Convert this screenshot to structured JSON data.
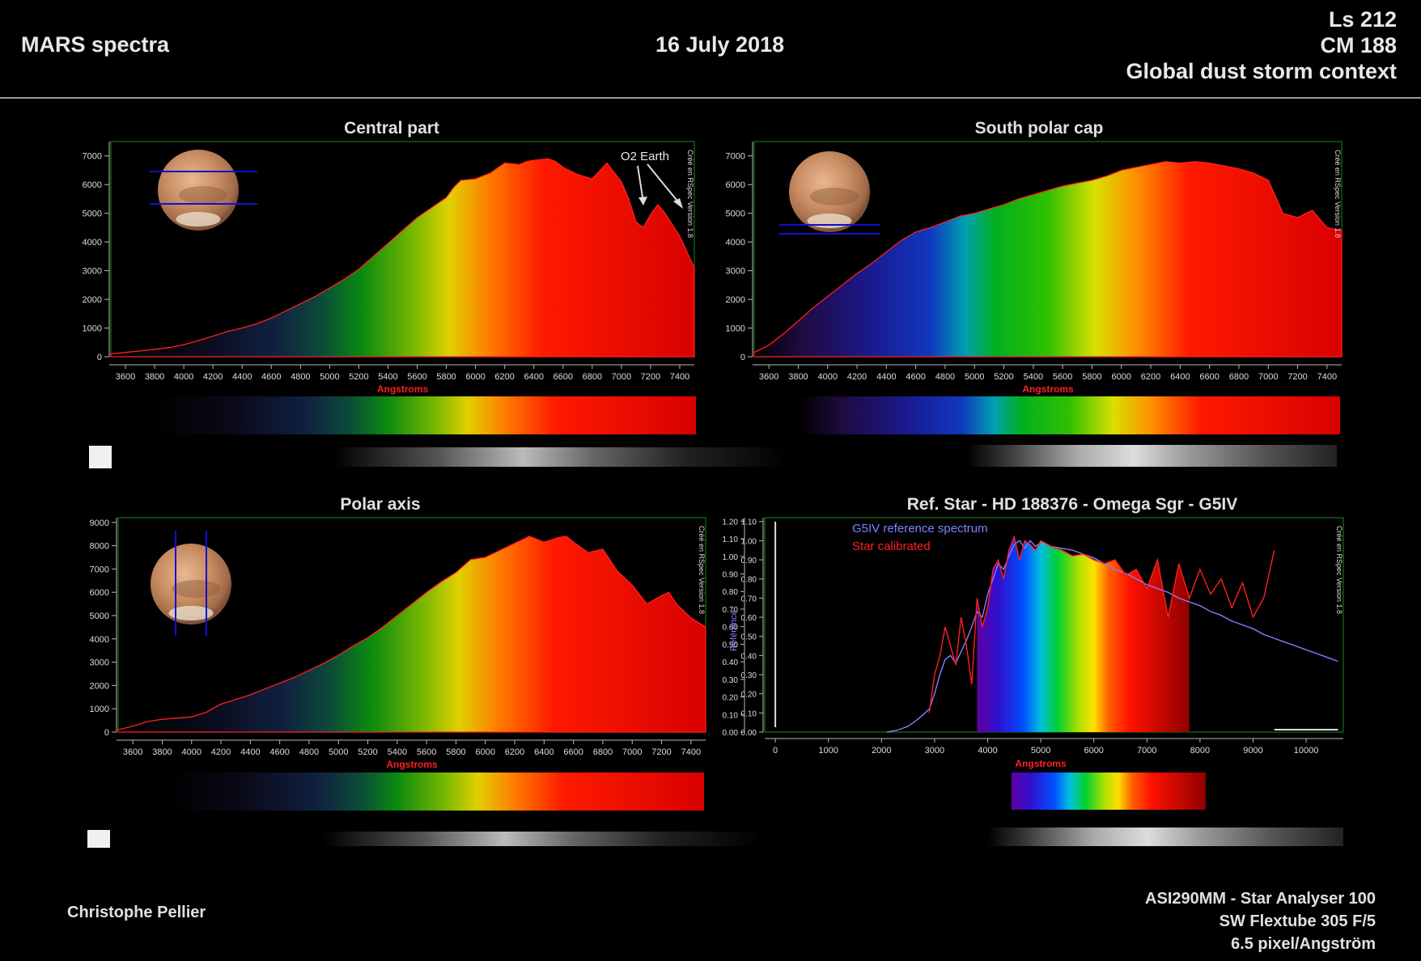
{
  "header": {
    "title": "MARS spectra",
    "date": "16 July 2018",
    "ls": "Ls 212",
    "cm": "CM 188",
    "context": "Global dust storm context"
  },
  "footer": {
    "author": "Christophe Pellier",
    "equipment": [
      "ASI290MM - Star Analyser 100",
      "SW Flextube 305 F/5",
      "6.5 pixel/Angström"
    ]
  },
  "chart_data": [
    {
      "type": "area",
      "title": "Central part",
      "xlabel": "Angstroms",
      "ylabel": "",
      "xlim": [
        3500,
        7500
      ],
      "ylim": [
        0,
        7500
      ],
      "xticks": [
        3600,
        3800,
        4000,
        4200,
        4400,
        4600,
        4800,
        5000,
        5200,
        5400,
        5600,
        5800,
        6000,
        6200,
        6400,
        6600,
        6800,
        7000,
        7200,
        7400
      ],
      "yticks": [
        0,
        1000,
        2000,
        3000,
        4000,
        5000,
        6000,
        7000
      ],
      "annotation": "O2 Earth",
      "watermark": "Créé en RSpec Version 1.8",
      "x": [
        3500,
        3600,
        3700,
        3800,
        3900,
        4000,
        4100,
        4200,
        4300,
        4400,
        4500,
        4600,
        4700,
        4800,
        4900,
        5000,
        5100,
        5200,
        5300,
        5400,
        5500,
        5600,
        5700,
        5800,
        5850,
        5900,
        6000,
        6100,
        6200,
        6300,
        6350,
        6400,
        6500,
        6550,
        6600,
        6700,
        6800,
        6900,
        7000,
        7050,
        7100,
        7150,
        7200,
        7250,
        7300,
        7400,
        7500
      ],
      "values": [
        100,
        150,
        200,
        260,
        320,
        420,
        560,
        720,
        880,
        1000,
        1150,
        1350,
        1600,
        1850,
        2100,
        2400,
        2700,
        3050,
        3500,
        3950,
        4400,
        4850,
        5200,
        5550,
        5900,
        6150,
        6200,
        6400,
        6750,
        6700,
        6800,
        6850,
        6900,
        6800,
        6600,
        6350,
        6200,
        6750,
        6100,
        5500,
        4700,
        4500,
        4950,
        5300,
        5000,
        4200,
        3100
      ]
    },
    {
      "type": "area",
      "title": "South polar cap",
      "xlabel": "Angstroms",
      "ylabel": "",
      "xlim": [
        3500,
        7500
      ],
      "ylim": [
        0,
        7500
      ],
      "xticks": [
        3600,
        3800,
        4000,
        4200,
        4400,
        4600,
        4800,
        5000,
        5200,
        5400,
        5600,
        5800,
        6000,
        6200,
        6400,
        6600,
        6800,
        7000,
        7200,
        7400
      ],
      "yticks": [
        0,
        1000,
        2000,
        3000,
        4000,
        5000,
        6000,
        7000
      ],
      "watermark": "Créé en RSpec Version 1.8",
      "x": [
        3500,
        3600,
        3700,
        3800,
        3900,
        4000,
        4100,
        4200,
        4300,
        4400,
        4500,
        4600,
        4700,
        4800,
        4900,
        5000,
        5100,
        5200,
        5300,
        5400,
        5500,
        5600,
        5700,
        5800,
        5900,
        6000,
        6100,
        6200,
        6300,
        6400,
        6500,
        6600,
        6700,
        6800,
        6900,
        7000,
        7100,
        7200,
        7300,
        7400,
        7500
      ],
      "values": [
        150,
        400,
        800,
        1250,
        1700,
        2100,
        2500,
        2900,
        3250,
        3650,
        4050,
        4350,
        4500,
        4700,
        4900,
        5000,
        5150,
        5300,
        5500,
        5650,
        5800,
        5950,
        6050,
        6150,
        6300,
        6500,
        6600,
        6700,
        6800,
        6750,
        6800,
        6750,
        6650,
        6550,
        6400,
        6150,
        5000,
        4850,
        5100,
        4500,
        4400
      ]
    },
    {
      "type": "area",
      "title": "Polar axis",
      "xlabel": "Angstroms",
      "ylabel": "",
      "xlim": [
        3500,
        7500
      ],
      "ylim": [
        0,
        9200
      ],
      "xticks": [
        3600,
        3800,
        4000,
        4200,
        4400,
        4600,
        4800,
        5000,
        5200,
        5400,
        5600,
        5800,
        6000,
        6200,
        6400,
        6600,
        6800,
        7000,
        7200,
        7400
      ],
      "yticks": [
        0,
        1000,
        2000,
        3000,
        4000,
        5000,
        6000,
        7000,
        8000,
        9000
      ],
      "watermark": "Créé en RSpec Version 1.8",
      "x": [
        3500,
        3600,
        3700,
        3800,
        3900,
        4000,
        4100,
        4200,
        4300,
        4400,
        4500,
        4600,
        4700,
        4800,
        4900,
        5000,
        5100,
        5200,
        5300,
        5400,
        5500,
        5600,
        5700,
        5800,
        5900,
        6000,
        6100,
        6200,
        6300,
        6400,
        6500,
        6550,
        6600,
        6700,
        6800,
        6900,
        7000,
        7100,
        7200,
        7250,
        7300,
        7400,
        7500
      ],
      "values": [
        100,
        250,
        450,
        550,
        600,
        650,
        850,
        1200,
        1400,
        1600,
        1850,
        2100,
        2350,
        2650,
        2950,
        3300,
        3700,
        4050,
        4500,
        5000,
        5500,
        6000,
        6450,
        6850,
        7400,
        7500,
        7800,
        8100,
        8400,
        8150,
        8350,
        8400,
        8150,
        7700,
        7850,
        6900,
        6300,
        5500,
        5850,
        6000,
        5500,
        4900,
        4500
      ]
    },
    {
      "type": "line",
      "title": "Ref. Star - HD 188376 - Omega Sgr - G5IV",
      "xlabel": "Angstroms",
      "ylabel": "Référence",
      "xlim": [
        -200,
        10700
      ],
      "ylim": [
        0,
        1.12
      ],
      "xticks": [
        0,
        1000,
        2000,
        3000,
        4000,
        5000,
        6000,
        7000,
        8000,
        9000,
        10000
      ],
      "yticks": [
        0,
        0.1,
        0.2,
        0.3,
        0.4,
        0.5,
        0.6,
        0.7,
        0.8,
        0.9,
        1.0,
        1.1
      ],
      "yticks_outer": [
        0,
        0.1,
        0.2,
        0.3,
        0.4,
        0.5,
        0.6,
        0.7,
        0.8,
        0.9,
        1.0,
        1.1,
        1.2
      ],
      "legend_position": "top-left",
      "watermark": "Créé en RSpec Version 1.8",
      "series": [
        {
          "name": "G5IV reference spectrum",
          "color": "#8080ff",
          "x": [
            2100,
            2300,
            2500,
            2700,
            2900,
            3000,
            3100,
            3200,
            3300,
            3400,
            3500,
            3600,
            3700,
            3800,
            3900,
            4000,
            4100,
            4200,
            4300,
            4400,
            4500,
            4600,
            4700,
            4800,
            4900,
            5000,
            5200,
            5400,
            5600,
            5800,
            6000,
            6200,
            6400,
            6600,
            6800,
            7000,
            7200,
            7400,
            7600,
            7800,
            8000,
            8200,
            8400,
            8600,
            8800,
            9000,
            9200,
            9400,
            9600,
            9800,
            10000,
            10200,
            10400,
            10600
          ],
          "values": [
            0.0,
            0.01,
            0.03,
            0.07,
            0.12,
            0.2,
            0.3,
            0.38,
            0.4,
            0.36,
            0.42,
            0.48,
            0.55,
            0.63,
            0.6,
            0.72,
            0.8,
            0.88,
            0.85,
            0.92,
            0.98,
            1.0,
            0.96,
            1.0,
            0.97,
            0.99,
            0.97,
            0.96,
            0.95,
            0.93,
            0.91,
            0.88,
            0.85,
            0.83,
            0.8,
            0.77,
            0.75,
            0.73,
            0.7,
            0.68,
            0.66,
            0.63,
            0.61,
            0.58,
            0.56,
            0.54,
            0.51,
            0.49,
            0.47,
            0.45,
            0.43,
            0.41,
            0.39,
            0.37
          ]
        },
        {
          "name": "Star calibrated",
          "color": "#ff2020",
          "x": [
            2900,
            3000,
            3100,
            3200,
            3300,
            3400,
            3500,
            3600,
            3700,
            3800,
            3900,
            4000,
            4100,
            4200,
            4300,
            4400,
            4500,
            4600,
            4700,
            4800,
            4900,
            5000,
            5200,
            5400,
            5600,
            5800,
            6000,
            6200,
            6400,
            6600,
            6800,
            7000,
            7200,
            7400,
            7600,
            7800,
            8000,
            8200,
            8400,
            8600,
            8800,
            9000,
            9200,
            9400
          ],
          "values": [
            0.1,
            0.3,
            0.4,
            0.55,
            0.45,
            0.35,
            0.6,
            0.45,
            0.25,
            0.7,
            0.55,
            0.65,
            0.85,
            0.9,
            0.8,
            0.95,
            1.02,
            0.9,
            1.0,
            0.98,
            0.95,
            1.0,
            0.97,
            0.95,
            0.92,
            0.93,
            0.9,
            0.88,
            0.9,
            0.82,
            0.85,
            0.75,
            0.9,
            0.6,
            0.88,
            0.7,
            0.85,
            0.72,
            0.8,
            0.65,
            0.78,
            0.6,
            0.7,
            0.95
          ]
        }
      ]
    }
  ]
}
